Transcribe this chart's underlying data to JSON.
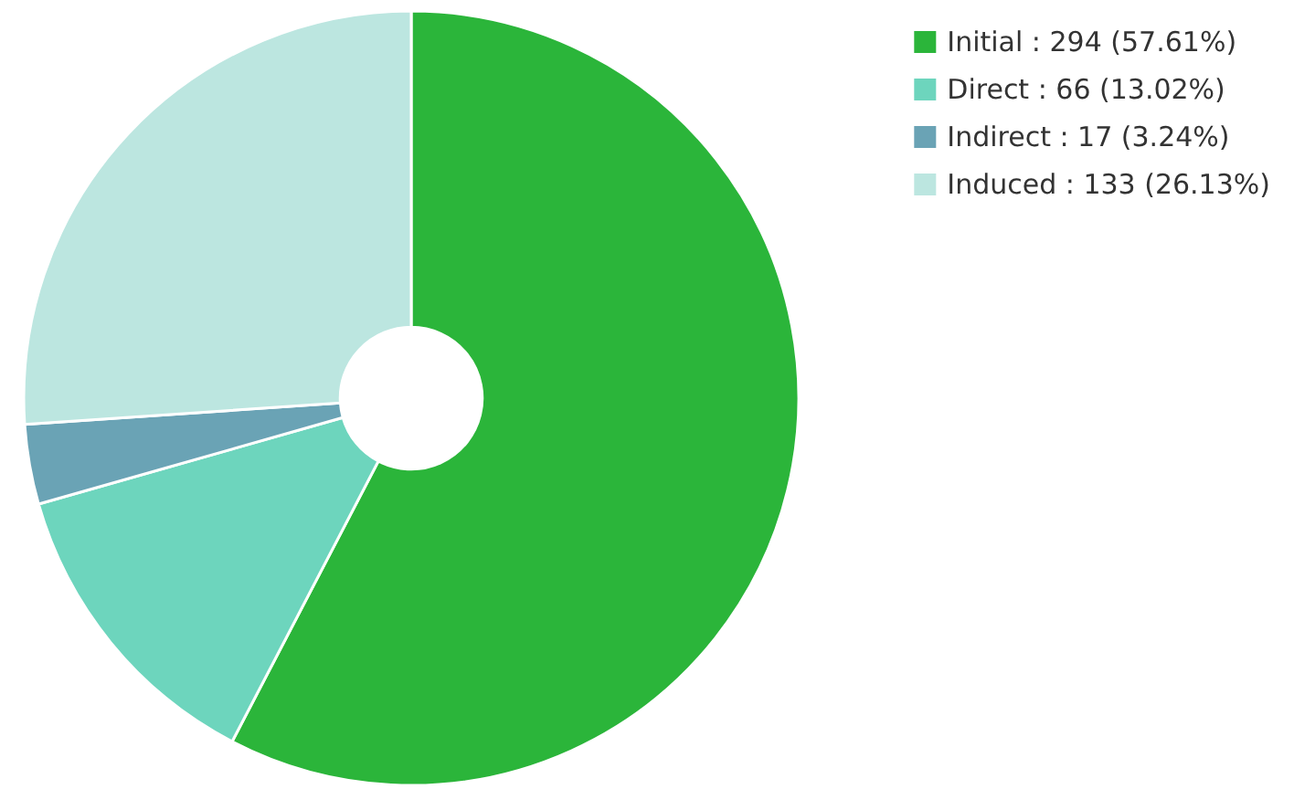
{
  "chart_data": {
    "type": "donut",
    "categories": [
      "Initial",
      "Direct",
      "Indirect",
      "Induced"
    ],
    "values": [
      294,
      66,
      17,
      133
    ],
    "value_labels": [
      "294 (57.61%)",
      "66 (13.02%)",
      "17 (3.24%)",
      "133 (26.13%)"
    ],
    "colors": [
      "#2bb53a",
      "#6dd5bd",
      "#6aa3b5",
      "#bce6e0"
    ],
    "legend": "top right"
  }
}
